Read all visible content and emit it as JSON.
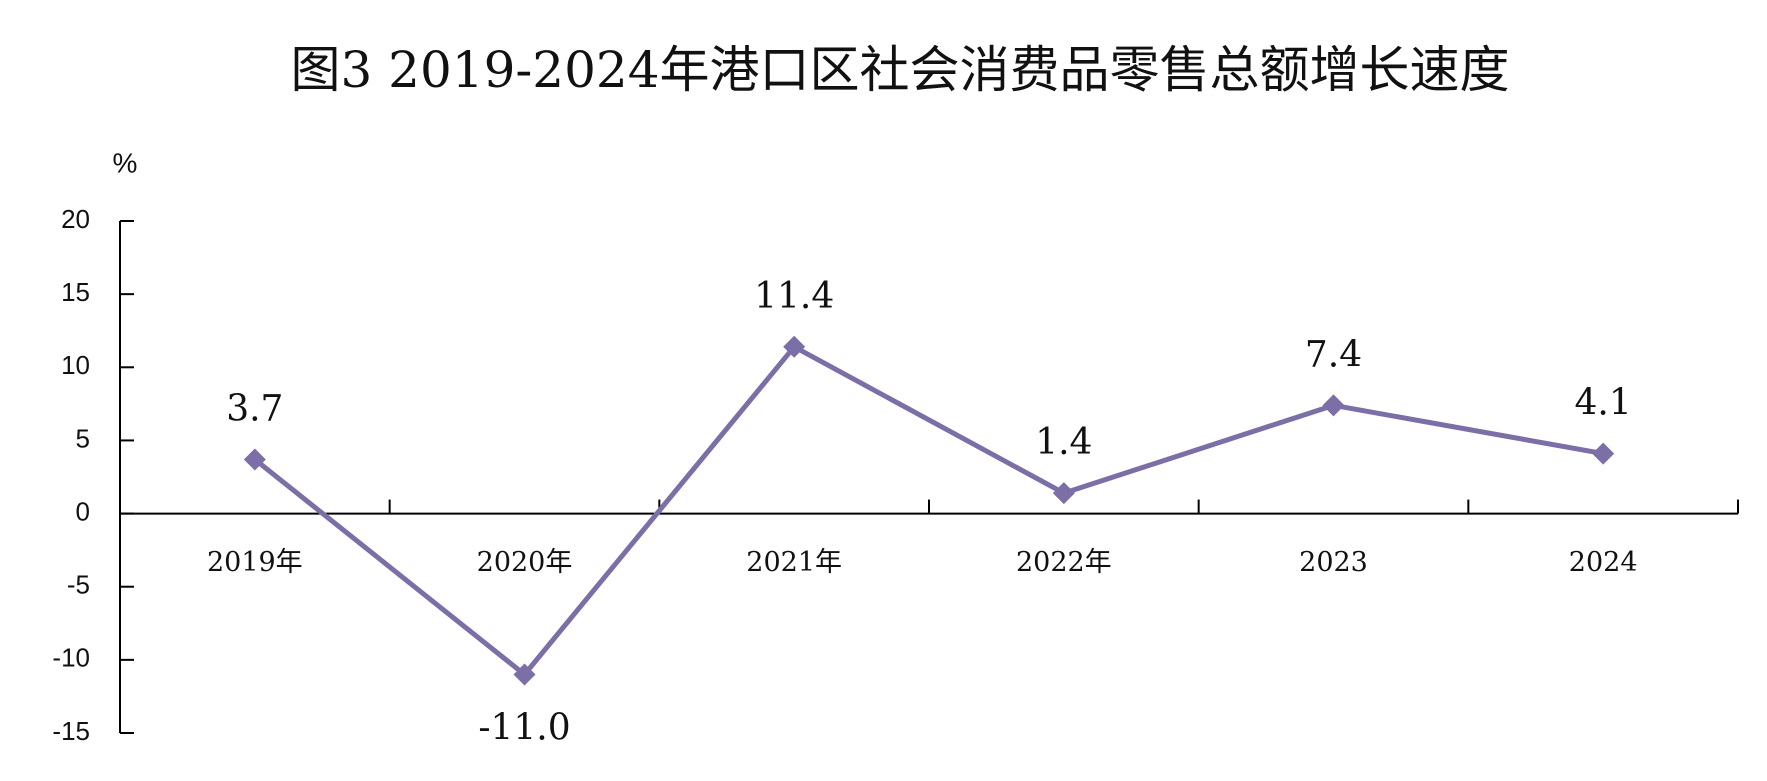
{
  "chart_data": {
    "type": "line",
    "title": "图3 2019-2024年港口区社会消费品零售总额增长速度",
    "y_label": "%",
    "categories": [
      "2019年",
      "2020年",
      "2021年",
      "2022年",
      "2023",
      "2024"
    ],
    "series": [
      {
        "name": "增长速度",
        "color": "#7c6ea6",
        "values": [
          3.7,
          -11.0,
          11.4,
          1.4,
          7.4,
          4.1
        ],
        "value_labels": [
          "3.7",
          "-11.0",
          "11.4",
          "1.4",
          "7.4",
          "4.1"
        ]
      }
    ],
    "ylim": [
      -15,
      20
    ],
    "yticks": [
      -15,
      -10,
      -5,
      0,
      5,
      10,
      15,
      20
    ],
    "grid": false
  }
}
